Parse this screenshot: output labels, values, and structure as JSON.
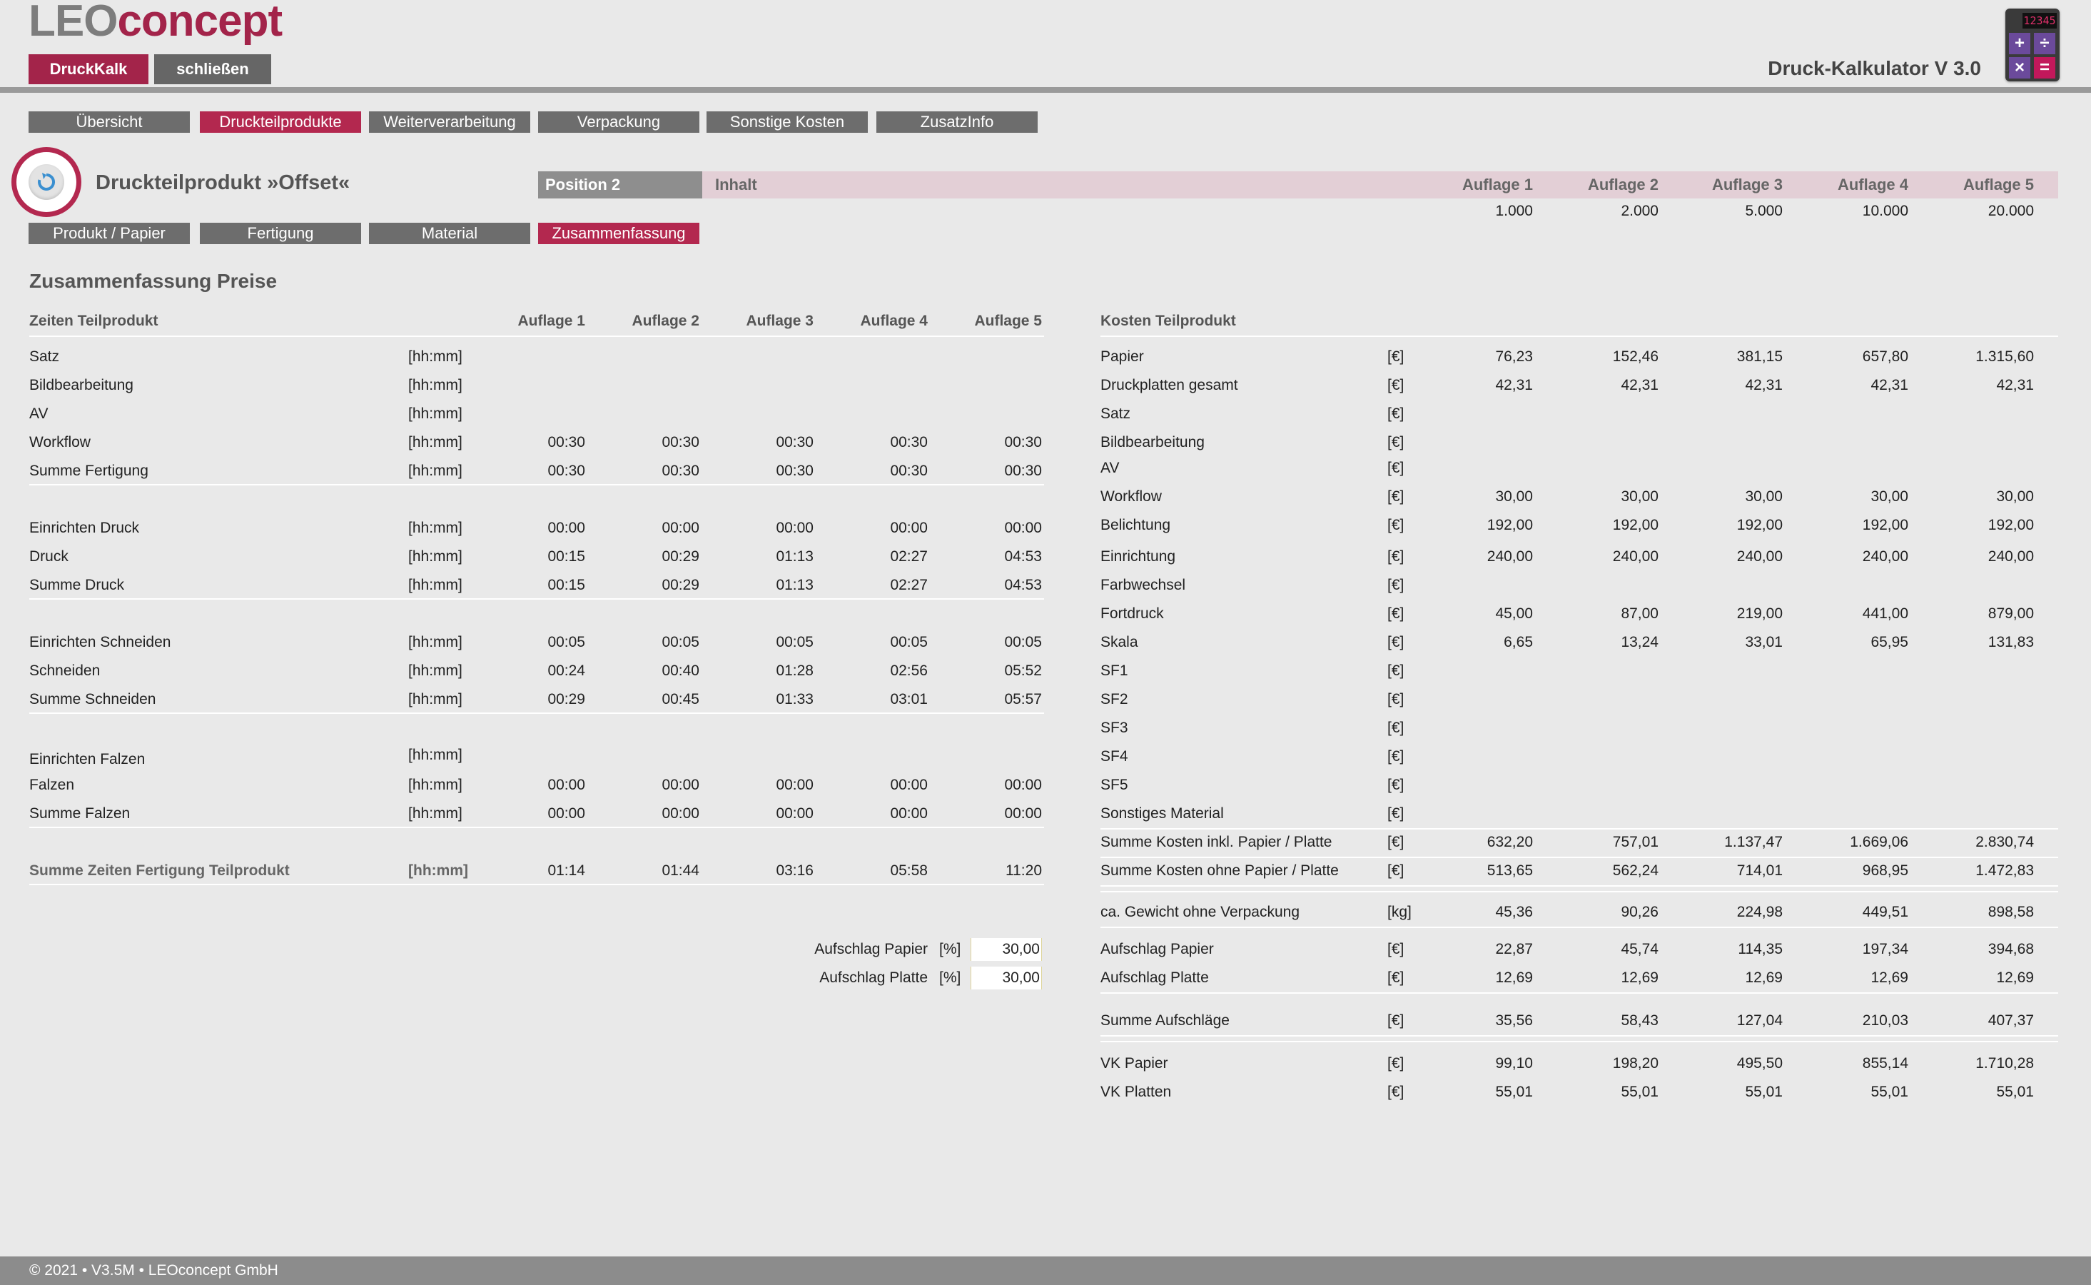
{
  "header": {
    "logo_part1": "LEO",
    "logo_part2": "concept",
    "btn_druckkalk": "DruckKalk",
    "btn_schliessen": "schließen",
    "app_title": "Druck-Kalkulator V 3.0",
    "calc_display": "12345"
  },
  "main_tabs": [
    "Übersicht",
    "Druckteilprodukte",
    "Weiterverarbeitung",
    "Verpackung",
    "Sonstige Kosten",
    "ZusatzInfo"
  ],
  "product": {
    "title": "Druckteilprodukt »Offset«",
    "position": "Position 2",
    "inhalt": "Inhalt",
    "auflage_headers": [
      "Auflage 1",
      "Auflage 2",
      "Auflage 3",
      "Auflage 4",
      "Auflage 5"
    ],
    "auflage_values": [
      "1.000",
      "2.000",
      "5.000",
      "10.000",
      "20.000"
    ]
  },
  "sub_tabs": [
    "Produkt / Papier",
    "Fertigung",
    "Material",
    "Zusammenfassung"
  ],
  "summary": {
    "heading": "Zusammenfassung Preise",
    "times_header": "Zeiten Teilprodukt",
    "costs_header": "Kosten Teilprodukt",
    "auflage_cols": [
      "Auflage 1",
      "Auflage 2",
      "Auflage 3",
      "Auflage 4",
      "Auflage 5"
    ]
  },
  "times_rows": [
    {
      "label": "Satz",
      "unit": "[hh:mm]",
      "vals": [
        "",
        "",
        "",
        "",
        ""
      ]
    },
    {
      "label": "Bildbearbeitung",
      "unit": "[hh:mm]",
      "vals": [
        "",
        "",
        "",
        "",
        ""
      ]
    },
    {
      "label": "AV",
      "unit": "[hh:mm]",
      "vals": [
        "",
        "",
        "",
        "",
        ""
      ]
    },
    {
      "label": "Workflow",
      "unit": "[hh:mm]",
      "vals": [
        "00:30",
        "00:30",
        "00:30",
        "00:30",
        "00:30"
      ]
    },
    {
      "label": "Summe Fertigung",
      "unit": "[hh:mm]",
      "vals": [
        "00:30",
        "00:30",
        "00:30",
        "00:30",
        "00:30"
      ]
    },
    {
      "label": "Einrichten Druck",
      "unit": "[hh:mm]",
      "vals": [
        "00:00",
        "00:00",
        "00:00",
        "00:00",
        "00:00"
      ]
    },
    {
      "label": "Druck",
      "unit": "[hh:mm]",
      "vals": [
        "00:15",
        "00:29",
        "01:13",
        "02:27",
        "04:53"
      ]
    },
    {
      "label": "Summe Druck",
      "unit": "[hh:mm]",
      "vals": [
        "00:15",
        "00:29",
        "01:13",
        "02:27",
        "04:53"
      ]
    },
    {
      "label": "Einrichten Schneiden",
      "unit": "[hh:mm]",
      "vals": [
        "00:05",
        "00:05",
        "00:05",
        "00:05",
        "00:05"
      ]
    },
    {
      "label": "Schneiden",
      "unit": "[hh:mm]",
      "vals": [
        "00:24",
        "00:40",
        "01:28",
        "02:56",
        "05:52"
      ]
    },
    {
      "label": "Summe Schneiden",
      "unit": "[hh:mm]",
      "vals": [
        "00:29",
        "00:45",
        "01:33",
        "03:01",
        "05:57"
      ]
    },
    {
      "label": "Einrichten Falzen",
      "unit": "[hh:mm]",
      "vals": [
        "",
        "",
        "",
        "",
        ""
      ]
    },
    {
      "label": "Falzen",
      "unit": "[hh:mm]",
      "vals": [
        "00:00",
        "00:00",
        "00:00",
        "00:00",
        "00:00"
      ]
    },
    {
      "label": "Summe Falzen",
      "unit": "[hh:mm]",
      "vals": [
        "00:00",
        "00:00",
        "00:00",
        "00:00",
        "00:00"
      ]
    },
    {
      "label": "Summe Zeiten Fertigung Teilprodukt",
      "unit": "[hh:mm]",
      "vals": [
        "01:14",
        "01:44",
        "03:16",
        "05:58",
        "11:20"
      ]
    }
  ],
  "aufschlag_inputs": [
    {
      "label": "Aufschlag Papier",
      "unit": "[%]",
      "value": "30,00"
    },
    {
      "label": "Aufschlag Platte",
      "unit": "[%]",
      "value": "30,00"
    }
  ],
  "cost_rows": [
    {
      "label": "Papier",
      "unit": "[€]",
      "vals": [
        "76,23",
        "152,46",
        "381,15",
        "657,80",
        "1.315,60"
      ]
    },
    {
      "label": "Druckplatten gesamt",
      "unit": "[€]",
      "vals": [
        "42,31",
        "42,31",
        "42,31",
        "42,31",
        "42,31"
      ]
    },
    {
      "label": "Satz",
      "unit": "[€]",
      "vals": [
        "",
        "",
        "",
        "",
        ""
      ]
    },
    {
      "label": "Bildbearbeitung",
      "unit": "[€]",
      "vals": [
        "",
        "",
        "",
        "",
        ""
      ]
    },
    {
      "label": "AV",
      "unit": "[€]",
      "vals": [
        "",
        "",
        "",
        "",
        ""
      ]
    },
    {
      "label": "Workflow",
      "unit": "[€]",
      "vals": [
        "30,00",
        "30,00",
        "30,00",
        "30,00",
        "30,00"
      ]
    },
    {
      "label": "Belichtung",
      "unit": "[€]",
      "vals": [
        "192,00",
        "192,00",
        "192,00",
        "192,00",
        "192,00"
      ]
    },
    {
      "label": "Einrichtung",
      "unit": "[€]",
      "vals": [
        "240,00",
        "240,00",
        "240,00",
        "240,00",
        "240,00"
      ]
    },
    {
      "label": "Farbwechsel",
      "unit": "[€]",
      "vals": [
        "",
        "",
        "",
        "",
        ""
      ]
    },
    {
      "label": "Fortdruck",
      "unit": "[€]",
      "vals": [
        "45,00",
        "87,00",
        "219,00",
        "441,00",
        "879,00"
      ]
    },
    {
      "label": "Skala",
      "unit": "[€]",
      "vals": [
        "6,65",
        "13,24",
        "33,01",
        "65,95",
        "131,83"
      ]
    },
    {
      "label": "SF1",
      "unit": "[€]",
      "vals": [
        "",
        "",
        "",
        "",
        ""
      ]
    },
    {
      "label": "SF2",
      "unit": "[€]",
      "vals": [
        "",
        "",
        "",
        "",
        ""
      ]
    },
    {
      "label": "SF3",
      "unit": "[€]",
      "vals": [
        "",
        "",
        "",
        "",
        ""
      ]
    },
    {
      "label": "SF4",
      "unit": "[€]",
      "vals": [
        "",
        "",
        "",
        "",
        ""
      ]
    },
    {
      "label": "SF5",
      "unit": "[€]",
      "vals": [
        "",
        "",
        "",
        "",
        ""
      ]
    },
    {
      "label": "Sonstiges Material",
      "unit": "[€]",
      "vals": [
        "",
        "",
        "",
        "",
        ""
      ]
    },
    {
      "label": "Summe Kosten inkl. Papier / Platte",
      "unit": "[€]",
      "vals": [
        "632,20",
        "757,01",
        "1.137,47",
        "1.669,06",
        "2.830,74"
      ]
    },
    {
      "label": "Summe Kosten ohne Papier / Platte",
      "unit": "[€]",
      "vals": [
        "513,65",
        "562,24",
        "714,01",
        "968,95",
        "1.472,83"
      ]
    },
    {
      "label": "ca. Gewicht ohne Verpackung",
      "unit": "[kg]",
      "vals": [
        "45,36",
        "90,26",
        "224,98",
        "449,51",
        "898,58"
      ]
    },
    {
      "label": "Aufschlag Papier",
      "unit": "[€]",
      "vals": [
        "22,87",
        "45,74",
        "114,35",
        "197,34",
        "394,68"
      ]
    },
    {
      "label": "Aufschlag Platte",
      "unit": "[€]",
      "vals": [
        "12,69",
        "12,69",
        "12,69",
        "12,69",
        "12,69"
      ]
    },
    {
      "label": "Summe Aufschläge",
      "unit": "[€]",
      "vals": [
        "35,56",
        "58,43",
        "127,04",
        "210,03",
        "407,37"
      ]
    },
    {
      "label": "VK Papier",
      "unit": "[€]",
      "vals": [
        "99,10",
        "198,20",
        "495,50",
        "855,14",
        "1.710,28"
      ]
    },
    {
      "label": "VK Platten",
      "unit": "[€]",
      "vals": [
        "55,01",
        "55,01",
        "55,01",
        "55,01",
        "55,01"
      ]
    }
  ],
  "footer": "© 2021 • V3.5M • LEOconcept GmbH"
}
